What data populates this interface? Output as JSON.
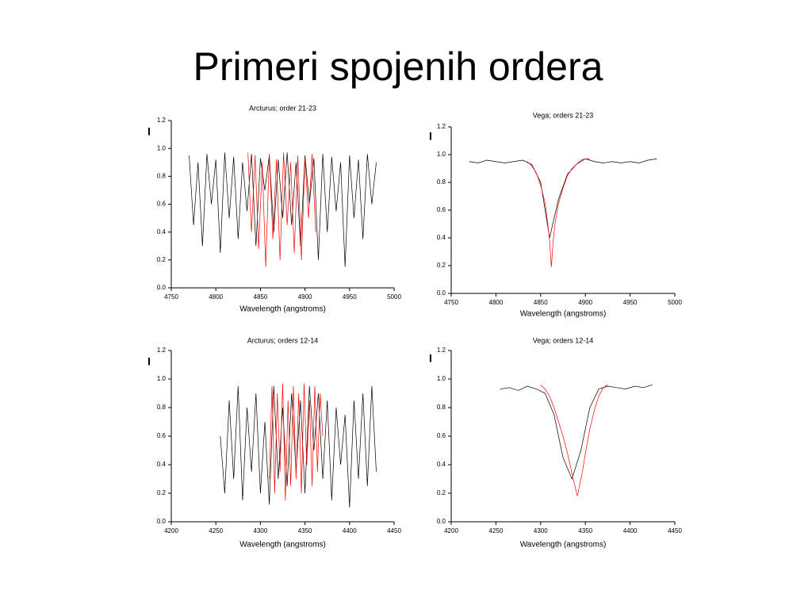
{
  "title": "Primeri spojenih ordera",
  "chart_data": [
    {
      "type": "line",
      "title": "Arcturus; order 21-23",
      "x_label": "Wavelength (angstroms)",
      "y_label": "I",
      "xlim": [
        4750,
        5000
      ],
      "xticks": [
        4750,
        4800,
        4850,
        4900,
        4950,
        5000
      ],
      "ylim": [
        0,
        1.2
      ],
      "yticks": [
        {
          "value": 0,
          "label": "0.0"
        },
        0.2,
        0.4,
        0.6,
        0.8,
        {
          "value": 1,
          "label": "1.0"
        },
        1.2
      ],
      "series": [
        {
          "color": "#000000",
          "x": [
            4770,
            4775,
            4780,
            4785,
            4790,
            4795,
            4800,
            4805,
            4810,
            4815,
            4820,
            4825,
            4830,
            4835,
            4840,
            4845,
            4850,
            4855,
            4860,
            4865,
            4870,
            4875,
            4880,
            4885,
            4890,
            4895,
            4900,
            4905,
            4910,
            4915,
            4920,
            4925,
            4930,
            4935,
            4940,
            4945,
            4950,
            4955,
            4960,
            4965,
            4970,
            4975,
            4980
          ],
          "values": [
            0.95,
            0.45,
            0.9,
            0.3,
            0.96,
            0.6,
            0.92,
            0.25,
            0.97,
            0.5,
            0.94,
            0.35,
            0.9,
            0.55,
            0.96,
            0.3,
            0.93,
            0.7,
            0.95,
            0.4,
            0.92,
            0.5,
            0.97,
            0.45,
            0.9,
            0.3,
            0.95,
            0.6,
            0.93,
            0.2,
            0.96,
            0.4,
            0.94,
            0.55,
            0.9,
            0.15,
            0.95,
            0.5,
            0.92,
            0.35,
            0.96,
            0.6,
            0.9
          ]
        },
        {
          "color": "#ff0000",
          "x": [
            4836,
            4840,
            4844,
            4848,
            4852,
            4856,
            4860,
            4864,
            4868,
            4872,
            4876,
            4880,
            4884,
            4888,
            4892,
            4896,
            4900,
            4904,
            4908,
            4912
          ],
          "values": [
            0.97,
            0.4,
            0.95,
            0.28,
            0.9,
            0.15,
            0.96,
            0.35,
            0.92,
            0.2,
            0.97,
            0.45,
            0.9,
            0.25,
            0.95,
            0.2,
            0.93,
            0.5,
            0.96,
            0.4
          ]
        }
      ]
    },
    {
      "type": "line",
      "title": "Vega; orders 21-23",
      "x_label": "Wavelength (angstroms)",
      "y_label": "I",
      "xlim": [
        4750,
        5000
      ],
      "xticks": [
        4750,
        4800,
        4850,
        4900,
        4950,
        5000
      ],
      "ylim": [
        0,
        1.2
      ],
      "yticks": [
        {
          "value": 0,
          "label": "0.0"
        },
        0.2,
        0.4,
        0.6,
        0.8,
        {
          "value": 1,
          "label": "1.0"
        },
        1.2
      ],
      "series": [
        {
          "color": "#000000",
          "x": [
            4770,
            4780,
            4790,
            4800,
            4810,
            4820,
            4830,
            4840,
            4850,
            4860,
            4870,
            4880,
            4890,
            4900,
            4910,
            4920,
            4930,
            4940,
            4950,
            4960,
            4970,
            4980
          ],
          "values": [
            0.95,
            0.94,
            0.96,
            0.95,
            0.94,
            0.95,
            0.96,
            0.93,
            0.8,
            0.4,
            0.68,
            0.86,
            0.93,
            0.97,
            0.95,
            0.94,
            0.95,
            0.94,
            0.95,
            0.94,
            0.96,
            0.97
          ]
        },
        {
          "color": "#ff0000",
          "x": [
            4835,
            4840,
            4845,
            4850,
            4855,
            4858,
            4860,
            4862,
            4864,
            4866,
            4870,
            4875,
            4880,
            4885,
            4890,
            4895,
            4900,
            4905
          ],
          "values": [
            0.95,
            0.92,
            0.87,
            0.78,
            0.65,
            0.5,
            0.38,
            0.19,
            0.38,
            0.5,
            0.65,
            0.76,
            0.85,
            0.9,
            0.93,
            0.96,
            0.97,
            0.97
          ]
        }
      ]
    },
    {
      "type": "line",
      "title": "Arcturus; orders 12-14",
      "x_label": "Wavelength (angstroms)",
      "y_label": "I",
      "xlim": [
        4200,
        4450
      ],
      "xticks": [
        4200,
        4250,
        4300,
        4350,
        4400,
        4450
      ],
      "ylim": [
        0,
        1.2
      ],
      "yticks": [
        {
          "value": 0,
          "label": "0.0"
        },
        0.2,
        0.4,
        0.6,
        0.8,
        {
          "value": 1,
          "label": "1.0"
        },
        1.2
      ],
      "series": [
        {
          "color": "#000000",
          "x": [
            4255,
            4260,
            4265,
            4270,
            4275,
            4280,
            4285,
            4290,
            4295,
            4300,
            4305,
            4310,
            4315,
            4320,
            4325,
            4330,
            4335,
            4340,
            4345,
            4350,
            4355,
            4360,
            4365,
            4370,
            4375,
            4380,
            4385,
            4390,
            4395,
            4400,
            4405,
            4410,
            4415,
            4420,
            4425,
            4430
          ],
          "values": [
            0.6,
            0.2,
            0.85,
            0.3,
            0.95,
            0.15,
            0.8,
            0.35,
            0.9,
            0.2,
            0.7,
            0.12,
            0.95,
            0.3,
            0.8,
            0.25,
            0.9,
            0.35,
            0.85,
            0.2,
            0.95,
            0.5,
            0.9,
            0.3,
            0.85,
            0.15,
            0.8,
            0.4,
            0.75,
            0.1,
            0.85,
            0.3,
            0.9,
            0.25,
            0.95,
            0.35
          ]
        },
        {
          "color": "#ff0000",
          "x": [
            4310,
            4313,
            4316,
            4319,
            4322,
            4325,
            4328,
            4331,
            4334,
            4337,
            4340,
            4343,
            4346,
            4349,
            4352,
            4355,
            4358,
            4361,
            4364,
            4367,
            4370
          ],
          "values": [
            0.3,
            0.95,
            0.2,
            0.9,
            0.35,
            0.97,
            0.15,
            0.85,
            0.25,
            0.95,
            0.3,
            0.9,
            0.2,
            0.97,
            0.4,
            0.85,
            0.25,
            0.95,
            0.35,
            0.9,
            0.6
          ]
        }
      ]
    },
    {
      "type": "line",
      "title": "Vega; orders 12-14",
      "x_label": "Wavelength (angstroms)",
      "y_label": "I",
      "xlim": [
        4200,
        4450
      ],
      "xticks": [
        4200,
        4250,
        4300,
        4350,
        4400,
        4450
      ],
      "ylim": [
        0,
        1.2
      ],
      "yticks": [
        {
          "value": 0,
          "label": "0.0"
        },
        0.2,
        0.4,
        0.6,
        0.8,
        {
          "value": 1,
          "label": "1.0"
        },
        1.2
      ],
      "series": [
        {
          "color": "#000000",
          "x": [
            4255,
            4265,
            4275,
            4285,
            4295,
            4305,
            4315,
            4325,
            4335,
            4345,
            4355,
            4365,
            4375,
            4385,
            4395,
            4405,
            4415,
            4425
          ],
          "values": [
            0.93,
            0.94,
            0.92,
            0.95,
            0.93,
            0.9,
            0.75,
            0.45,
            0.3,
            0.5,
            0.8,
            0.93,
            0.95,
            0.94,
            0.93,
            0.95,
            0.94,
            0.96
          ]
        },
        {
          "color": "#ff0000",
          "x": [
            4300,
            4305,
            4310,
            4315,
            4320,
            4325,
            4330,
            4335,
            4338,
            4341,
            4344,
            4347,
            4350,
            4355,
            4360,
            4365,
            4370,
            4375
          ],
          "values": [
            0.96,
            0.93,
            0.88,
            0.8,
            0.7,
            0.6,
            0.48,
            0.34,
            0.26,
            0.18,
            0.27,
            0.36,
            0.48,
            0.65,
            0.78,
            0.88,
            0.94,
            0.96
          ]
        }
      ]
    }
  ]
}
